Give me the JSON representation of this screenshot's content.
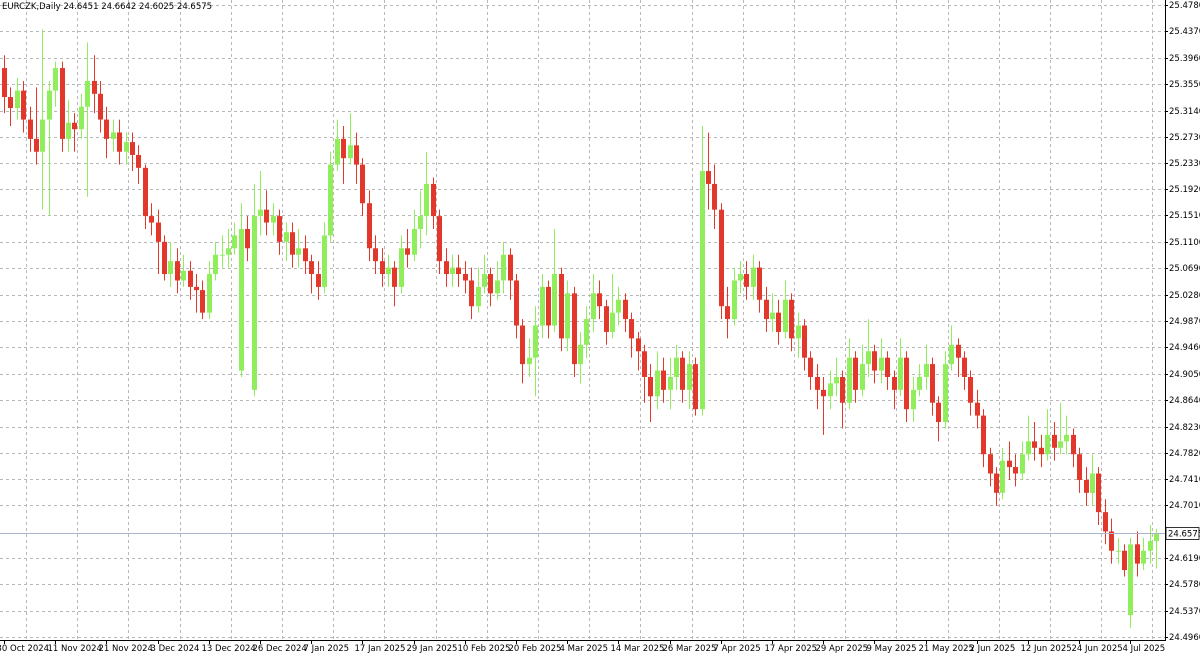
{
  "chart_data": {
    "type": "candlestick",
    "title": "EURCZK,Daily",
    "categories": [
      "30 Oct 2024",
      null,
      null,
      null,
      null,
      null,
      null,
      null,
      "11 Nov 2024",
      null,
      null,
      null,
      null,
      null,
      null,
      null,
      "21 Nov 2024",
      null,
      null,
      null,
      null,
      null,
      null,
      null,
      "3 Dec 2024",
      null,
      null,
      null,
      null,
      null,
      null,
      null,
      "13 Dec 2024",
      null,
      null,
      null,
      null,
      null,
      null,
      null,
      "26 Dec 2024",
      null,
      null,
      null,
      null,
      null,
      null,
      null,
      "7 Jan 2025",
      null,
      null,
      null,
      null,
      null,
      null,
      null,
      "17 Jan 2025",
      null,
      null,
      null,
      null,
      null,
      null,
      null,
      "29 Jan 2025",
      null,
      null,
      null,
      null,
      null,
      null,
      null,
      "10 Feb 2025",
      null,
      null,
      null,
      null,
      null,
      null,
      null,
      "20 Feb 2025",
      null,
      null,
      null,
      null,
      null,
      null,
      null,
      "4 Mar 2025",
      null,
      null,
      null,
      null,
      null,
      null,
      null,
      "14 Mar 2025",
      null,
      null,
      null,
      null,
      null,
      null,
      null,
      "26 Mar 2025",
      null,
      null,
      null,
      null,
      null,
      null,
      null,
      "7 Apr 2025",
      null,
      null,
      null,
      null,
      null,
      null,
      null,
      "17 Apr 2025",
      null,
      null,
      null,
      null,
      null,
      null,
      null,
      "29 Apr 2025",
      null,
      null,
      null,
      null,
      null,
      null,
      null,
      "9 May 2025",
      null,
      null,
      null,
      null,
      null,
      null,
      null,
      "21 May 2025",
      null,
      null,
      null,
      null,
      null,
      null,
      null,
      "2 Jun 2025",
      null,
      null,
      null,
      null,
      null,
      null,
      null,
      "12 Jun 2025",
      null,
      null,
      null,
      null,
      null,
      null,
      null,
      "24 Jun 2025",
      null,
      null,
      null,
      null,
      null,
      null,
      null,
      "4 Jul 2025",
      null,
      null,
      null,
      null
    ],
    "open": [
      25.38,
      25.335,
      25.318,
      25.345,
      25.3,
      25.27,
      25.25,
      25.3,
      25.345,
      25.38,
      25.27,
      25.295,
      25.285,
      25.32,
      25.36,
      25.34,
      25.3,
      25.27,
      25.28,
      25.25,
      25.265,
      25.245,
      25.225,
      25.15,
      25.14,
      25.11,
      25.06,
      25.08,
      25.05,
      25.065,
      25.04,
      25.035,
      25.0,
      25.06,
      25.09,
      25.09,
      25.1,
      24.91,
      25.13,
      24.88,
      25.15,
      25.16,
      25.14,
      25.15,
      25.11,
      25.125,
      25.09,
      25.1,
      25.08,
      25.06,
      25.04,
      25.12,
      25.23,
      25.27,
      25.24,
      25.26,
      25.23,
      25.17,
      25.1,
      25.08,
      25.06,
      25.07,
      25.04,
      25.1,
      25.09,
      25.13,
      25.15,
      25.2,
      25.15,
      25.08,
      25.06,
      25.07,
      25.06,
      25.05,
      25.01,
      25.04,
      25.06,
      25.03,
      25.05,
      25.09,
      25.05,
      24.98,
      24.92,
      24.93,
      24.98,
      25.04,
      24.98,
      25.06,
      24.96,
      25.03,
      24.92,
      24.95,
      24.99,
      25.03,
      25.01,
      24.97,
      25.0,
      25.02,
      24.99,
      24.96,
      24.94,
      24.9,
      24.87,
      24.91,
      24.88,
      24.9,
      24.93,
      24.88,
      24.92,
      24.85,
      25.22,
      25.2,
      25.16,
      25.01,
      24.99,
      25.05,
      25.06,
      25.04,
      25.07,
      25.02,
      24.99,
      25.0,
      24.97,
      25.02,
      24.96,
      24.98,
      24.93,
      24.9,
      24.88,
      24.87,
      24.89,
      24.9,
      24.86,
      24.93,
      24.88,
      24.92,
      24.94,
      24.91,
      24.93,
      24.9,
      24.88,
      24.93,
      24.85,
      24.88,
      24.9,
      24.92,
      24.86,
      24.83,
      24.92,
      24.95,
      24.93,
      24.9,
      24.86,
      24.84,
      24.78,
      24.75,
      24.72,
      24.77,
      24.76,
      24.75,
      24.78,
      24.8,
      24.79,
      24.78,
      24.81,
      24.79,
      24.8,
      24.81,
      24.78,
      24.74,
      24.72,
      24.75,
      24.69,
      24.66,
      24.63,
      24.63,
      24.53,
      24.64,
      24.61,
      24.63,
      24.6451
    ],
    "high": [
      25.4,
      25.35,
      25.365,
      25.36,
      25.32,
      25.35,
      25.44,
      25.36,
      25.39,
      25.39,
      25.33,
      25.31,
      25.34,
      25.42,
      25.4,
      25.36,
      25.32,
      25.3,
      25.3,
      25.28,
      25.28,
      25.26,
      25.23,
      25.17,
      25.16,
      25.12,
      25.11,
      25.1,
      25.09,
      25.08,
      25.06,
      25.05,
      25.08,
      25.11,
      25.12,
      25.13,
      25.14,
      25.17,
      25.15,
      25.2,
      25.22,
      25.19,
      25.17,
      25.16,
      25.14,
      25.14,
      25.13,
      25.12,
      25.09,
      25.08,
      25.14,
      25.25,
      25.3,
      25.29,
      25.31,
      25.28,
      25.24,
      25.19,
      25.12,
      25.1,
      25.09,
      25.08,
      25.12,
      25.13,
      25.16,
      25.19,
      25.25,
      25.21,
      25.16,
      25.1,
      25.09,
      25.09,
      25.08,
      25.07,
      25.07,
      25.09,
      25.07,
      25.08,
      25.11,
      25.1,
      25.06,
      24.99,
      24.96,
      25.01,
      25.06,
      25.05,
      25.13,
      25.07,
      25.05,
      25.04,
      24.97,
      25.01,
      25.06,
      25.05,
      25.02,
      25.06,
      25.04,
      25.03,
      25.0,
      24.97,
      24.95,
      24.92,
      24.94,
      24.93,
      24.93,
      24.95,
      24.94,
      24.94,
      24.93,
      25.29,
      25.28,
      25.23,
      25.17,
      25.04,
      25.07,
      25.08,
      25.08,
      25.09,
      25.08,
      25.04,
      25.03,
      25.02,
      25.05,
      25.03,
      25.0,
      24.99,
      24.94,
      24.92,
      24.9,
      24.91,
      24.93,
      24.91,
      24.96,
      24.94,
      24.95,
      24.99,
      24.95,
      24.96,
      24.94,
      24.91,
      24.96,
      24.94,
      24.9,
      24.92,
      24.95,
      24.93,
      24.87,
      24.94,
      24.98,
      24.96,
      24.94,
      24.91,
      24.88,
      24.85,
      24.79,
      24.76,
      24.79,
      24.8,
      24.78,
      24.8,
      24.84,
      24.83,
      24.81,
      24.85,
      24.83,
      24.86,
      24.84,
      24.82,
      24.79,
      24.76,
      24.78,
      24.76,
      24.71,
      24.68,
      24.65,
      24.64,
      24.65,
      24.66,
      24.65,
      24.67,
      24.6642
    ],
    "low": [
      25.31,
      25.29,
      25.3,
      25.28,
      25.25,
      25.23,
      25.16,
      25.15,
      25.32,
      25.25,
      25.25,
      25.25,
      25.27,
      25.18,
      25.31,
      25.28,
      25.24,
      25.25,
      25.23,
      25.23,
      25.22,
      25.2,
      25.13,
      25.12,
      25.06,
      25.05,
      25.04,
      25.03,
      25.04,
      25.02,
      25.0,
      24.99,
      24.99,
      25.05,
      25.07,
      25.07,
      25.09,
      24.9,
      25.08,
      24.87,
      25.12,
      25.12,
      25.12,
      25.09,
      25.08,
      25.07,
      25.07,
      25.06,
      25.03,
      25.02,
      25.03,
      25.11,
      25.22,
      25.2,
      25.23,
      25.2,
      25.15,
      25.08,
      25.06,
      25.04,
      25.04,
      25.01,
      25.03,
      25.07,
      25.08,
      25.1,
      25.12,
      25.13,
      25.06,
      25.04,
      25.04,
      25.04,
      25.03,
      24.99,
      25.0,
      25.03,
      25.01,
      25.02,
      25.03,
      25.02,
      24.96,
      24.89,
      24.9,
      24.87,
      24.96,
      24.96,
      24.97,
      24.94,
      24.94,
      24.9,
      24.89,
      24.93,
      24.97,
      24.99,
      24.95,
      24.96,
      24.98,
      24.97,
      24.93,
      24.91,
      24.86,
      24.83,
      24.85,
      24.86,
      24.85,
      24.88,
      24.86,
      24.85,
      24.84,
      24.84,
      25.16,
      25.13,
      24.99,
      24.96,
      24.98,
      25.03,
      25.02,
      25.02,
      25.0,
      24.97,
      24.97,
      24.95,
      24.96,
      24.94,
      24.93,
      24.91,
      24.88,
      24.85,
      24.81,
      24.85,
      24.87,
      24.82,
      24.85,
      24.86,
      24.87,
      24.9,
      24.89,
      24.89,
      24.88,
      24.85,
      24.87,
      24.83,
      24.83,
      24.87,
      24.88,
      24.84,
      24.8,
      24.82,
      24.91,
      24.9,
      24.88,
      24.84,
      24.82,
      24.76,
      24.73,
      24.7,
      24.71,
      24.74,
      24.73,
      24.74,
      24.77,
      24.77,
      24.76,
      24.77,
      24.77,
      24.78,
      24.78,
      24.76,
      24.72,
      24.7,
      24.7,
      24.67,
      24.64,
      24.61,
      24.61,
      24.59,
      24.51,
      24.59,
      24.6,
      24.61,
      24.6025
    ],
    "close": [
      25.335,
      25.318,
      25.345,
      25.3,
      25.27,
      25.25,
      25.3,
      25.345,
      25.38,
      25.27,
      25.295,
      25.285,
      25.32,
      25.36,
      25.34,
      25.3,
      25.27,
      25.28,
      25.25,
      25.265,
      25.245,
      25.225,
      25.15,
      25.14,
      25.11,
      25.06,
      25.08,
      25.05,
      25.065,
      25.04,
      25.035,
      25.0,
      25.06,
      25.09,
      25.09,
      25.1,
      25.12,
      25.13,
      25.1,
      25.15,
      25.16,
      25.14,
      25.15,
      25.11,
      25.125,
      25.09,
      25.1,
      25.08,
      25.06,
      25.04,
      25.12,
      25.23,
      25.27,
      25.24,
      25.26,
      25.23,
      25.17,
      25.1,
      25.08,
      25.06,
      25.07,
      25.04,
      25.1,
      25.09,
      25.13,
      25.15,
      25.2,
      25.15,
      25.08,
      25.06,
      25.07,
      25.06,
      25.05,
      25.01,
      25.04,
      25.06,
      25.03,
      25.05,
      25.09,
      25.05,
      24.98,
      24.92,
      24.93,
      24.98,
      25.04,
      24.98,
      25.06,
      24.96,
      25.03,
      24.92,
      24.95,
      24.99,
      25.03,
      25.01,
      24.97,
      25.0,
      25.02,
      24.99,
      24.96,
      24.94,
      24.9,
      24.87,
      24.91,
      24.88,
      24.9,
      24.93,
      24.88,
      24.92,
      24.85,
      25.22,
      25.2,
      25.16,
      25.01,
      24.99,
      25.05,
      25.06,
      25.04,
      25.07,
      25.02,
      24.99,
      25.0,
      24.97,
      25.02,
      24.96,
      24.98,
      24.93,
      24.9,
      24.88,
      24.87,
      24.89,
      24.9,
      24.86,
      24.93,
      24.88,
      24.92,
      24.94,
      24.91,
      24.93,
      24.9,
      24.88,
      24.93,
      24.85,
      24.88,
      24.9,
      24.92,
      24.86,
      24.83,
      24.92,
      24.95,
      24.93,
      24.9,
      24.86,
      24.84,
      24.78,
      24.75,
      24.72,
      24.77,
      24.76,
      24.75,
      24.78,
      24.8,
      24.79,
      24.78,
      24.81,
      24.79,
      24.8,
      24.81,
      24.78,
      24.74,
      24.72,
      24.75,
      24.69,
      24.66,
      24.63,
      24.63,
      24.6,
      24.64,
      24.61,
      24.63,
      24.6451,
      24.6575
    ],
    "up_color": "#90ee5c",
    "down_color": "#e2382b",
    "ylim": [
      24.4913,
      25.4858
    ],
    "yticks": [
      {
        "value": 25.478,
        "label": "25.4780"
      },
      {
        "value": 25.437,
        "label": "25.4370"
      },
      {
        "value": 25.396,
        "label": "25.3960"
      },
      {
        "value": 25.355,
        "label": "25.3550"
      },
      {
        "value": 25.314,
        "label": "25.3140"
      },
      {
        "value": 25.273,
        "label": "25.2730"
      },
      {
        "value": 25.233,
        "label": "25.2330"
      },
      {
        "value": 25.192,
        "label": "25.1920"
      },
      {
        "value": 25.151,
        "label": "25.1510"
      },
      {
        "value": 25.11,
        "label": "25.1100"
      },
      {
        "value": 25.069,
        "label": "25.0690"
      },
      {
        "value": 25.028,
        "label": "25.0280"
      },
      {
        "value": 24.987,
        "label": "24.9870"
      },
      {
        "value": 24.946,
        "label": "24.9460"
      },
      {
        "value": 24.905,
        "label": "24.9050"
      },
      {
        "value": 24.864,
        "label": "24.8640"
      },
      {
        "value": 24.823,
        "label": "24.8230"
      },
      {
        "value": 24.782,
        "label": "24.7820"
      },
      {
        "value": 24.741,
        "label": "24.7410"
      },
      {
        "value": 24.701,
        "label": "24.7010"
      },
      {
        "value": 24.619,
        "label": "24.6190"
      },
      {
        "value": 24.578,
        "label": "24.5780"
      },
      {
        "value": 24.537,
        "label": "24.5370"
      },
      {
        "value": 24.496,
        "label": "24.4960"
      }
    ],
    "grid": true
  }
}
